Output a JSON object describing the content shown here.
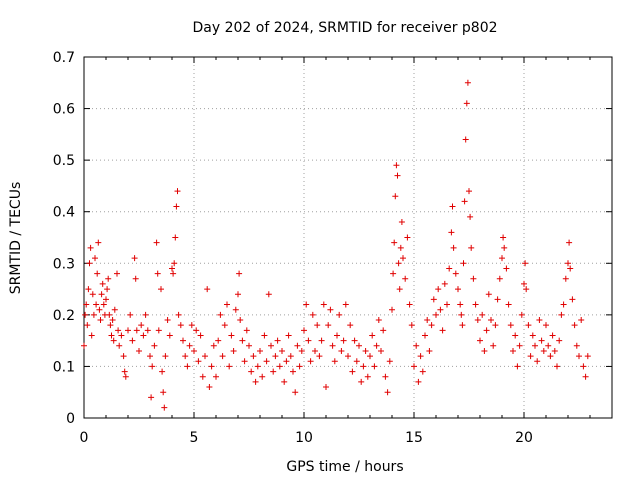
{
  "chart_data": {
    "type": "scatter",
    "title": "Day 202 of 2024, SRMTID for receiver p802",
    "xlabel": "GPS time / hours",
    "ylabel": "SRMTID / TECUs",
    "xlim": [
      0,
      24
    ],
    "ylim": [
      0,
      0.7
    ],
    "grid": true,
    "xticks": [
      0,
      5,
      10,
      15,
      20
    ],
    "yticks": [
      0,
      0.1,
      0.2,
      0.3,
      0.4,
      0.5,
      0.6,
      0.7
    ],
    "xtick_labels": [
      "0",
      "5",
      "10",
      "15",
      "20"
    ],
    "ytick_labels": [
      "0",
      "0.1",
      "0.2",
      "0.3",
      "0.4",
      "0.5",
      "0.6",
      "0.7"
    ],
    "marker": "+",
    "color": "#e00000",
    "series": [
      {
        "name": "p802",
        "points": [
          [
            0.0,
            0.14
          ],
          [
            0.05,
            0.2
          ],
          [
            0.1,
            0.22
          ],
          [
            0.15,
            0.18
          ],
          [
            0.2,
            0.25
          ],
          [
            0.25,
            0.3
          ],
          [
            0.3,
            0.33
          ],
          [
            0.35,
            0.16
          ],
          [
            0.4,
            0.24
          ],
          [
            0.45,
            0.2
          ],
          [
            0.5,
            0.31
          ],
          [
            0.55,
            0.22
          ],
          [
            0.6,
            0.28
          ],
          [
            0.65,
            0.34
          ],
          [
            0.7,
            0.21
          ],
          [
            0.75,
            0.19
          ],
          [
            0.8,
            0.24
          ],
          [
            0.85,
            0.26
          ],
          [
            0.9,
            0.22
          ],
          [
            0.95,
            0.2
          ],
          [
            1.0,
            0.23
          ],
          [
            1.05,
            0.25
          ],
          [
            1.1,
            0.27
          ],
          [
            1.15,
            0.2
          ],
          [
            1.2,
            0.18
          ],
          [
            1.25,
            0.16
          ],
          [
            1.3,
            0.19
          ],
          [
            1.35,
            0.15
          ],
          [
            1.4,
            0.21
          ],
          [
            1.5,
            0.28
          ],
          [
            1.55,
            0.17
          ],
          [
            1.6,
            0.14
          ],
          [
            1.7,
            0.16
          ],
          [
            1.8,
            0.12
          ],
          [
            1.85,
            0.09
          ],
          [
            1.9,
            0.08
          ],
          [
            2.0,
            0.17
          ],
          [
            2.1,
            0.2
          ],
          [
            2.2,
            0.15
          ],
          [
            2.3,
            0.31
          ],
          [
            2.35,
            0.27
          ],
          [
            2.4,
            0.17
          ],
          [
            2.5,
            0.13
          ],
          [
            2.6,
            0.18
          ],
          [
            2.7,
            0.16
          ],
          [
            2.8,
            0.2
          ],
          [
            2.9,
            0.17
          ],
          [
            3.0,
            0.12
          ],
          [
            3.05,
            0.04
          ],
          [
            3.1,
            0.1
          ],
          [
            3.2,
            0.14
          ],
          [
            3.3,
            0.34
          ],
          [
            3.35,
            0.28
          ],
          [
            3.4,
            0.17
          ],
          [
            3.5,
            0.25
          ],
          [
            3.55,
            0.09
          ],
          [
            3.6,
            0.05
          ],
          [
            3.65,
            0.02
          ],
          [
            3.7,
            0.12
          ],
          [
            3.8,
            0.19
          ],
          [
            3.9,
            0.16
          ],
          [
            4.0,
            0.29
          ],
          [
            4.05,
            0.28
          ],
          [
            4.1,
            0.3
          ],
          [
            4.15,
            0.35
          ],
          [
            4.2,
            0.41
          ],
          [
            4.25,
            0.44
          ],
          [
            4.3,
            0.2
          ],
          [
            4.4,
            0.18
          ],
          [
            4.5,
            0.15
          ],
          [
            4.6,
            0.12
          ],
          [
            4.7,
            0.1
          ],
          [
            4.8,
            0.14
          ],
          [
            4.9,
            0.18
          ],
          [
            5.0,
            0.13
          ],
          [
            5.1,
            0.17
          ],
          [
            5.2,
            0.11
          ],
          [
            5.3,
            0.16
          ],
          [
            5.4,
            0.08
          ],
          [
            5.5,
            0.12
          ],
          [
            5.6,
            0.25
          ],
          [
            5.7,
            0.06
          ],
          [
            5.8,
            0.1
          ],
          [
            5.9,
            0.14
          ],
          [
            6.0,
            0.08
          ],
          [
            6.1,
            0.15
          ],
          [
            6.2,
            0.2
          ],
          [
            6.3,
            0.12
          ],
          [
            6.4,
            0.18
          ],
          [
            6.5,
            0.22
          ],
          [
            6.6,
            0.1
          ],
          [
            6.7,
            0.16
          ],
          [
            6.8,
            0.13
          ],
          [
            6.9,
            0.21
          ],
          [
            7.0,
            0.24
          ],
          [
            7.05,
            0.28
          ],
          [
            7.1,
            0.19
          ],
          [
            7.2,
            0.15
          ],
          [
            7.3,
            0.11
          ],
          [
            7.4,
            0.17
          ],
          [
            7.5,
            0.14
          ],
          [
            7.6,
            0.09
          ],
          [
            7.7,
            0.12
          ],
          [
            7.8,
            0.07
          ],
          [
            7.9,
            0.1
          ],
          [
            8.0,
            0.13
          ],
          [
            8.1,
            0.08
          ],
          [
            8.2,
            0.16
          ],
          [
            8.3,
            0.11
          ],
          [
            8.4,
            0.24
          ],
          [
            8.5,
            0.14
          ],
          [
            8.6,
            0.09
          ],
          [
            8.7,
            0.12
          ],
          [
            8.8,
            0.15
          ],
          [
            8.9,
            0.1
          ],
          [
            9.0,
            0.13
          ],
          [
            9.1,
            0.07
          ],
          [
            9.2,
            0.11
          ],
          [
            9.3,
            0.16
          ],
          [
            9.4,
            0.12
          ],
          [
            9.5,
            0.09
          ],
          [
            9.6,
            0.05
          ],
          [
            9.7,
            0.14
          ],
          [
            9.8,
            0.1
          ],
          [
            9.9,
            0.13
          ],
          [
            10.0,
            0.17
          ],
          [
            10.1,
            0.22
          ],
          [
            10.2,
            0.15
          ],
          [
            10.3,
            0.11
          ],
          [
            10.4,
            0.2
          ],
          [
            10.5,
            0.13
          ],
          [
            10.6,
            0.18
          ],
          [
            10.7,
            0.12
          ],
          [
            10.8,
            0.15
          ],
          [
            10.9,
            0.22
          ],
          [
            11.0,
            0.06
          ],
          [
            11.1,
            0.18
          ],
          [
            11.2,
            0.21
          ],
          [
            11.3,
            0.14
          ],
          [
            11.4,
            0.11
          ],
          [
            11.5,
            0.16
          ],
          [
            11.6,
            0.2
          ],
          [
            11.7,
            0.13
          ],
          [
            11.8,
            0.15
          ],
          [
            11.9,
            0.22
          ],
          [
            12.0,
            0.12
          ],
          [
            12.1,
            0.18
          ],
          [
            12.2,
            0.09
          ],
          [
            12.3,
            0.15
          ],
          [
            12.4,
            0.11
          ],
          [
            12.5,
            0.14
          ],
          [
            12.6,
            0.07
          ],
          [
            12.7,
            0.1
          ],
          [
            12.8,
            0.13
          ],
          [
            12.9,
            0.08
          ],
          [
            13.0,
            0.12
          ],
          [
            13.1,
            0.16
          ],
          [
            13.2,
            0.1
          ],
          [
            13.3,
            0.14
          ],
          [
            13.4,
            0.19
          ],
          [
            13.5,
            0.13
          ],
          [
            13.6,
            0.17
          ],
          [
            13.7,
            0.08
          ],
          [
            13.8,
            0.05
          ],
          [
            13.9,
            0.11
          ],
          [
            14.0,
            0.21
          ],
          [
            14.05,
            0.28
          ],
          [
            14.1,
            0.34
          ],
          [
            14.15,
            0.43
          ],
          [
            14.2,
            0.49
          ],
          [
            14.25,
            0.47
          ],
          [
            14.3,
            0.3
          ],
          [
            14.35,
            0.25
          ],
          [
            14.4,
            0.33
          ],
          [
            14.45,
            0.38
          ],
          [
            14.5,
            0.31
          ],
          [
            14.6,
            0.27
          ],
          [
            14.7,
            0.35
          ],
          [
            14.8,
            0.22
          ],
          [
            14.9,
            0.18
          ],
          [
            15.0,
            0.1
          ],
          [
            15.1,
            0.14
          ],
          [
            15.2,
            0.07
          ],
          [
            15.3,
            0.12
          ],
          [
            15.4,
            0.09
          ],
          [
            15.5,
            0.16
          ],
          [
            15.6,
            0.19
          ],
          [
            15.7,
            0.13
          ],
          [
            15.8,
            0.18
          ],
          [
            15.9,
            0.23
          ],
          [
            16.0,
            0.2
          ],
          [
            16.1,
            0.25
          ],
          [
            16.2,
            0.21
          ],
          [
            16.3,
            0.17
          ],
          [
            16.4,
            0.26
          ],
          [
            16.5,
            0.22
          ],
          [
            16.6,
            0.29
          ],
          [
            16.7,
            0.36
          ],
          [
            16.75,
            0.41
          ],
          [
            16.8,
            0.33
          ],
          [
            16.9,
            0.28
          ],
          [
            17.0,
            0.25
          ],
          [
            17.1,
            0.22
          ],
          [
            17.15,
            0.2
          ],
          [
            17.2,
            0.18
          ],
          [
            17.25,
            0.3
          ],
          [
            17.3,
            0.42
          ],
          [
            17.35,
            0.54
          ],
          [
            17.4,
            0.61
          ],
          [
            17.45,
            0.65
          ],
          [
            17.5,
            0.44
          ],
          [
            17.55,
            0.39
          ],
          [
            17.6,
            0.33
          ],
          [
            17.7,
            0.27
          ],
          [
            17.8,
            0.22
          ],
          [
            17.9,
            0.19
          ],
          [
            18.0,
            0.15
          ],
          [
            18.1,
            0.2
          ],
          [
            18.2,
            0.13
          ],
          [
            18.3,
            0.17
          ],
          [
            18.4,
            0.24
          ],
          [
            18.5,
            0.19
          ],
          [
            18.6,
            0.14
          ],
          [
            18.7,
            0.18
          ],
          [
            18.8,
            0.23
          ],
          [
            18.9,
            0.27
          ],
          [
            19.0,
            0.31
          ],
          [
            19.05,
            0.35
          ],
          [
            19.1,
            0.33
          ],
          [
            19.2,
            0.29
          ],
          [
            19.3,
            0.22
          ],
          [
            19.4,
            0.18
          ],
          [
            19.5,
            0.13
          ],
          [
            19.6,
            0.16
          ],
          [
            19.7,
            0.1
          ],
          [
            19.8,
            0.14
          ],
          [
            19.9,
            0.2
          ],
          [
            20.0,
            0.26
          ],
          [
            20.05,
            0.3
          ],
          [
            20.1,
            0.25
          ],
          [
            20.2,
            0.18
          ],
          [
            20.3,
            0.12
          ],
          [
            20.4,
            0.16
          ],
          [
            20.5,
            0.14
          ],
          [
            20.6,
            0.11
          ],
          [
            20.7,
            0.19
          ],
          [
            20.8,
            0.15
          ],
          [
            20.9,
            0.13
          ],
          [
            21.0,
            0.18
          ],
          [
            21.1,
            0.14
          ],
          [
            21.2,
            0.12
          ],
          [
            21.3,
            0.16
          ],
          [
            21.4,
            0.13
          ],
          [
            21.5,
            0.1
          ],
          [
            21.6,
            0.15
          ],
          [
            21.7,
            0.2
          ],
          [
            21.8,
            0.22
          ],
          [
            21.9,
            0.27
          ],
          [
            22.0,
            0.3
          ],
          [
            22.05,
            0.34
          ],
          [
            22.1,
            0.29
          ],
          [
            22.2,
            0.23
          ],
          [
            22.3,
            0.18
          ],
          [
            22.4,
            0.14
          ],
          [
            22.5,
            0.12
          ],
          [
            22.6,
            0.19
          ],
          [
            22.7,
            0.1
          ],
          [
            22.8,
            0.08
          ],
          [
            22.9,
            0.12
          ]
        ]
      }
    ]
  }
}
